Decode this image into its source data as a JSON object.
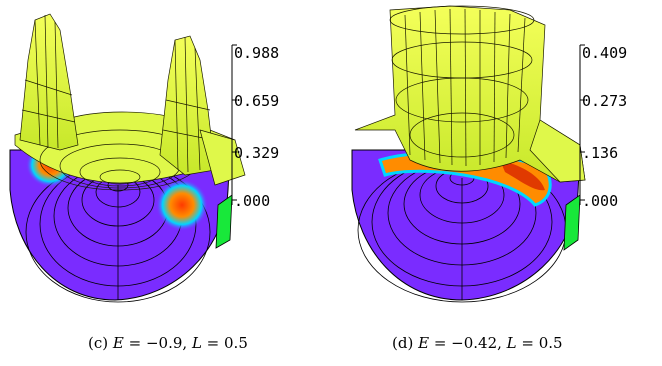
{
  "figures": [
    {
      "label": "(c)",
      "E_text": "−0.9",
      "L_text": "0.5",
      "colorbar_ticks": [
        "0.988",
        "0.659",
        "0.329",
        ".000"
      ]
    },
    {
      "label": "(d)",
      "E_text": "−0.42",
      "L_text": "0.5",
      "colorbar_ticks": [
        "0.409",
        "0.273",
        ".136",
        ".000"
      ]
    }
  ],
  "colors": {
    "surface": "#e8ff3c",
    "surface_dark": "#b7d620",
    "base": "#7a2cff",
    "peak": "#e03a00",
    "ring": "#ff8c00",
    "cyan": "#00d6ff",
    "green": "#18e83a"
  }
}
